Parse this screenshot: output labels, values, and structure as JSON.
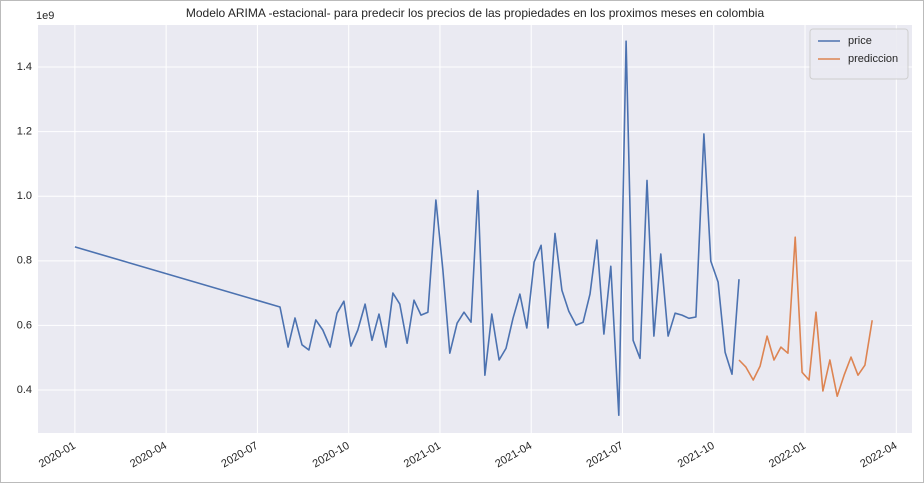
{
  "chart_data": {
    "type": "line",
    "title": "Modelo ARIMA -estacional- para predecir los precios de las propiedades en los proximos meses en colombia",
    "y_offset_label": "1e9",
    "xlim": [
      2019.899,
      2022.293
    ],
    "xticks": [
      {
        "value": 2020.0,
        "label": "2020-01"
      },
      {
        "value": 2020.25,
        "label": "2020-04"
      },
      {
        "value": 2020.5,
        "label": "2020-07"
      },
      {
        "value": 2020.75,
        "label": "2020-10"
      },
      {
        "value": 2021.0,
        "label": "2021-01"
      },
      {
        "value": 2021.25,
        "label": "2021-04"
      },
      {
        "value": 2021.5,
        "label": "2021-07"
      },
      {
        "value": 2021.75,
        "label": "2021-10"
      },
      {
        "value": 2022.0,
        "label": "2022-01"
      },
      {
        "value": 2022.25,
        "label": "2022-04"
      }
    ],
    "ylim": [
      0.267,
      1.53
    ],
    "yticks": [
      0.4,
      0.6,
      0.8,
      {
        "value": 1.0,
        "label": "1.0"
      },
      1.2,
      1.4
    ],
    "grid": true,
    "legend": "upper right",
    "series": [
      {
        "name": "price",
        "color": "#4c72b0",
        "x": [
          2020.0,
          2020.562,
          2020.584,
          2020.603,
          2020.622,
          2020.641,
          2020.66,
          2020.679,
          2020.699,
          2020.718,
          2020.737,
          2020.756,
          2020.775,
          2020.795,
          2020.814,
          2020.833,
          2020.852,
          2020.871,
          2020.89,
          2020.91,
          2020.929,
          2020.948,
          2020.967,
          2020.989,
          2021.008,
          2021.027,
          2021.047,
          2021.066,
          2021.085,
          2021.104,
          2021.123,
          2021.142,
          2021.162,
          2021.181,
          2021.2,
          2021.219,
          2021.238,
          2021.258,
          2021.277,
          2021.296,
          2021.315,
          2021.334,
          2021.353,
          2021.373,
          2021.392,
          2021.411,
          2021.43,
          2021.449,
          2021.468,
          2021.49,
          2021.51,
          2021.529,
          2021.548,
          2021.567,
          2021.586,
          2021.605,
          2021.625,
          2021.644,
          2021.663,
          2021.682,
          2021.701,
          2021.723,
          2021.742,
          2021.762,
          2021.781,
          2021.8,
          2021.819
        ],
        "values": [
          0.843,
          0.657,
          0.533,
          0.623,
          0.54,
          0.524,
          0.617,
          0.586,
          0.533,
          0.638,
          0.675,
          0.536,
          0.586,
          0.666,
          0.554,
          0.635,
          0.533,
          0.7,
          0.666,
          0.545,
          0.678,
          0.632,
          0.641,
          0.988,
          0.771,
          0.514,
          0.607,
          0.641,
          0.61,
          1.017,
          0.446,
          0.635,
          0.493,
          0.529,
          0.622,
          0.697,
          0.592,
          0.796,
          0.848,
          0.592,
          0.885,
          0.709,
          0.644,
          0.601,
          0.61,
          0.697,
          0.864,
          0.573,
          0.783,
          0.322,
          1.48,
          0.554,
          0.498,
          1.049,
          0.567,
          0.821,
          0.567,
          0.638,
          0.632,
          0.622,
          0.626,
          1.193,
          0.799,
          0.734,
          0.517,
          0.449,
          0.743
        ]
      },
      {
        "name": "prediccion",
        "color": "#dd8452",
        "x": [
          2021.819,
          2021.838,
          2021.858,
          2021.877,
          2021.896,
          2021.915,
          2021.934,
          2021.953,
          2021.973,
          2021.992,
          2022.011,
          2022.03,
          2022.049,
          2022.068,
          2022.088,
          2022.107,
          2022.126,
          2022.145,
          2022.164,
          2022.184
        ],
        "values": [
          0.493,
          0.471,
          0.431,
          0.474,
          0.567,
          0.493,
          0.533,
          0.514,
          0.873,
          0.455,
          0.431,
          0.641,
          0.397,
          0.493,
          0.381,
          0.446,
          0.502,
          0.446,
          0.477,
          0.616
        ]
      }
    ]
  }
}
